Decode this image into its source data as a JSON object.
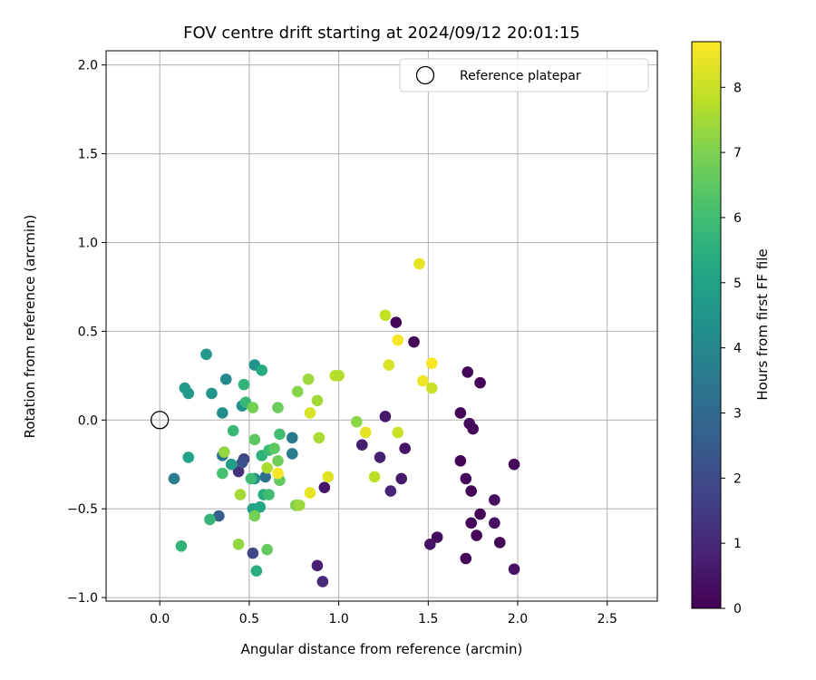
{
  "chart_data": {
    "type": "scatter",
    "title": "FOV centre drift starting at 2024/09/12 20:01:15",
    "xlabel": "Angular distance from reference (arcmin)",
    "ylabel": "Rotation from reference (arcmin)",
    "xlim": [
      -0.3,
      2.78
    ],
    "ylim": [
      -1.02,
      2.08
    ],
    "xticks": [
      0.0,
      0.5,
      1.0,
      1.5,
      2.0,
      2.5
    ],
    "xtick_labels": [
      "0.0",
      "0.5",
      "1.0",
      "1.5",
      "2.0",
      "2.5"
    ],
    "yticks": [
      -1.0,
      -0.5,
      0.0,
      0.5,
      1.0,
      1.5,
      2.0
    ],
    "ytick_labels": [
      "−1.0",
      "−0.5",
      "0.0",
      "0.5",
      "1.0",
      "1.5",
      "2.0"
    ],
    "grid": true,
    "legend": {
      "placement": "top-right",
      "entries": [
        "Reference platepar"
      ]
    },
    "reference_point": {
      "x": 0.0,
      "y": 0.0
    },
    "colorbar": {
      "label": "Hours from first FF file",
      "min": 0,
      "max": 8.7,
      "ticks": [
        0,
        1,
        2,
        3,
        4,
        5,
        6,
        7,
        8
      ],
      "tick_labels": [
        "0",
        "1",
        "2",
        "3",
        "4",
        "5",
        "6",
        "7",
        "8"
      ],
      "colormap": "viridis"
    },
    "points": [
      {
        "x": 1.32,
        "y": 0.55,
        "c": 0.1
      },
      {
        "x": 1.42,
        "y": 0.44,
        "c": 0.1
      },
      {
        "x": 1.72,
        "y": 0.27,
        "c": 0.2
      },
      {
        "x": 1.79,
        "y": 0.21,
        "c": 0.1
      },
      {
        "x": 1.68,
        "y": 0.04,
        "c": 0.1
      },
      {
        "x": 1.73,
        "y": -0.02,
        "c": 0.3
      },
      {
        "x": 1.75,
        "y": -0.05,
        "c": 0.2
      },
      {
        "x": 1.68,
        "y": -0.23,
        "c": 0.1
      },
      {
        "x": 1.98,
        "y": -0.25,
        "c": 0.1
      },
      {
        "x": 1.71,
        "y": -0.33,
        "c": 0.2
      },
      {
        "x": 1.74,
        "y": -0.4,
        "c": 0.1
      },
      {
        "x": 1.87,
        "y": -0.45,
        "c": 0.3
      },
      {
        "x": 1.79,
        "y": -0.53,
        "c": 0.1
      },
      {
        "x": 1.74,
        "y": -0.58,
        "c": 0.2
      },
      {
        "x": 1.87,
        "y": -0.58,
        "c": 0.4
      },
      {
        "x": 1.77,
        "y": -0.65,
        "c": 0.1
      },
      {
        "x": 1.55,
        "y": -0.66,
        "c": 0.3
      },
      {
        "x": 1.51,
        "y": -0.7,
        "c": 0.5
      },
      {
        "x": 1.9,
        "y": -0.69,
        "c": 0.1
      },
      {
        "x": 1.71,
        "y": -0.78,
        "c": 0.1
      },
      {
        "x": 1.98,
        "y": -0.84,
        "c": 0.4
      },
      {
        "x": 1.26,
        "y": 0.02,
        "c": 0.6
      },
      {
        "x": 1.13,
        "y": -0.14,
        "c": 0.7
      },
      {
        "x": 1.37,
        "y": -0.16,
        "c": 0.5
      },
      {
        "x": 1.23,
        "y": -0.21,
        "c": 0.8
      },
      {
        "x": 1.35,
        "y": -0.33,
        "c": 0.6
      },
      {
        "x": 1.29,
        "y": -0.4,
        "c": 0.9
      },
      {
        "x": 0.92,
        "y": -0.38,
        "c": 0.5
      },
      {
        "x": 0.88,
        "y": -0.82,
        "c": 0.8
      },
      {
        "x": 0.91,
        "y": -0.91,
        "c": 1.0
      },
      {
        "x": 0.52,
        "y": -0.75,
        "c": 1.8
      },
      {
        "x": 0.47,
        "y": -0.22,
        "c": 1.7
      },
      {
        "x": 0.44,
        "y": -0.29,
        "c": 1.2
      },
      {
        "x": 0.46,
        "y": -0.24,
        "c": 2.2
      },
      {
        "x": 0.33,
        "y": -0.54,
        "c": 2.6
      },
      {
        "x": 0.08,
        "y": -0.33,
        "c": 3.6
      },
      {
        "x": 0.35,
        "y": -0.2,
        "c": 3.4
      },
      {
        "x": 0.59,
        "y": -0.32,
        "c": 3.2
      },
      {
        "x": 0.74,
        "y": -0.1,
        "c": 3.5
      },
      {
        "x": 0.74,
        "y": -0.19,
        "c": 3.6
      },
      {
        "x": 0.53,
        "y": -0.33,
        "c": 4.4
      },
      {
        "x": 0.35,
        "y": 0.04,
        "c": 4.2
      },
      {
        "x": 0.37,
        "y": 0.23,
        "c": 4.1
      },
      {
        "x": 0.29,
        "y": 0.15,
        "c": 4.5
      },
      {
        "x": 0.26,
        "y": 0.37,
        "c": 4.6
      },
      {
        "x": 0.14,
        "y": 0.18,
        "c": 4.7
      },
      {
        "x": 0.16,
        "y": 0.15,
        "c": 4.6
      },
      {
        "x": 0.46,
        "y": 0.08,
        "c": 4.3
      },
      {
        "x": 0.53,
        "y": 0.31,
        "c": 4.4
      },
      {
        "x": 0.16,
        "y": -0.21,
        "c": 5.0
      },
      {
        "x": 0.4,
        "y": -0.25,
        "c": 4.9
      },
      {
        "x": 0.52,
        "y": -0.5,
        "c": 5.0
      },
      {
        "x": 0.56,
        "y": -0.49,
        "c": 5.2
      },
      {
        "x": 0.58,
        "y": -0.42,
        "c": 5.4
      },
      {
        "x": 0.28,
        "y": -0.56,
        "c": 5.7
      },
      {
        "x": 0.12,
        "y": -0.71,
        "c": 5.6
      },
      {
        "x": 0.54,
        "y": -0.85,
        "c": 5.4
      },
      {
        "x": 0.57,
        "y": 0.28,
        "c": 5.3
      },
      {
        "x": 0.47,
        "y": 0.2,
        "c": 5.6
      },
      {
        "x": 0.48,
        "y": 0.1,
        "c": 5.8
      },
      {
        "x": 0.41,
        "y": -0.06,
        "c": 5.8
      },
      {
        "x": 0.57,
        "y": -0.2,
        "c": 5.6
      },
      {
        "x": 0.61,
        "y": -0.17,
        "c": 5.9
      },
      {
        "x": 0.67,
        "y": -0.08,
        "c": 6.0
      },
      {
        "x": 0.51,
        "y": -0.33,
        "c": 5.9
      },
      {
        "x": 0.35,
        "y": -0.3,
        "c": 6.1
      },
      {
        "x": 0.61,
        "y": -0.42,
        "c": 6.0
      },
      {
        "x": 0.64,
        "y": -0.16,
        "c": 6.5
      },
      {
        "x": 0.53,
        "y": -0.11,
        "c": 6.5
      },
      {
        "x": 0.66,
        "y": -0.23,
        "c": 6.8
      },
      {
        "x": 0.67,
        "y": -0.34,
        "c": 6.6
      },
      {
        "x": 0.53,
        "y": -0.54,
        "c": 6.9
      },
      {
        "x": 0.6,
        "y": -0.73,
        "c": 6.6
      },
      {
        "x": 0.44,
        "y": -0.7,
        "c": 7.3
      },
      {
        "x": 0.45,
        "y": -0.42,
        "c": 7.5
      },
      {
        "x": 0.36,
        "y": -0.18,
        "c": 7.3
      },
      {
        "x": 0.52,
        "y": 0.07,
        "c": 6.9
      },
      {
        "x": 0.66,
        "y": 0.07,
        "c": 6.7
      },
      {
        "x": 0.77,
        "y": 0.16,
        "c": 7.1
      },
      {
        "x": 0.83,
        "y": 0.23,
        "c": 7.4
      },
      {
        "x": 0.88,
        "y": 0.11,
        "c": 7.5
      },
      {
        "x": 0.89,
        "y": -0.1,
        "c": 7.6
      },
      {
        "x": 0.76,
        "y": -0.48,
        "c": 7.0
      },
      {
        "x": 0.78,
        "y": -0.48,
        "c": 7.4
      },
      {
        "x": 0.6,
        "y": -0.27,
        "c": 7.6
      },
      {
        "x": 1.1,
        "y": -0.01,
        "c": 7.2
      },
      {
        "x": 0.98,
        "y": 0.25,
        "c": 7.8
      },
      {
        "x": 1.0,
        "y": 0.25,
        "c": 7.7
      },
      {
        "x": 1.26,
        "y": 0.59,
        "c": 7.9
      },
      {
        "x": 1.2,
        "y": -0.32,
        "c": 7.8
      },
      {
        "x": 0.84,
        "y": 0.04,
        "c": 8.2
      },
      {
        "x": 1.15,
        "y": -0.07,
        "c": 8.4
      },
      {
        "x": 1.33,
        "y": -0.07,
        "c": 8.0
      },
      {
        "x": 1.28,
        "y": 0.31,
        "c": 8.2
      },
      {
        "x": 1.52,
        "y": 0.18,
        "c": 8.0
      },
      {
        "x": 1.33,
        "y": 0.45,
        "c": 8.6
      },
      {
        "x": 1.47,
        "y": 0.22,
        "c": 8.5
      },
      {
        "x": 1.52,
        "y": 0.32,
        "c": 8.6
      },
      {
        "x": 1.45,
        "y": 0.88,
        "c": 8.4
      },
      {
        "x": 0.94,
        "y": -0.32,
        "c": 8.3
      },
      {
        "x": 0.84,
        "y": -0.41,
        "c": 8.4
      },
      {
        "x": 0.66,
        "y": -0.3,
        "c": 8.6
      }
    ]
  }
}
